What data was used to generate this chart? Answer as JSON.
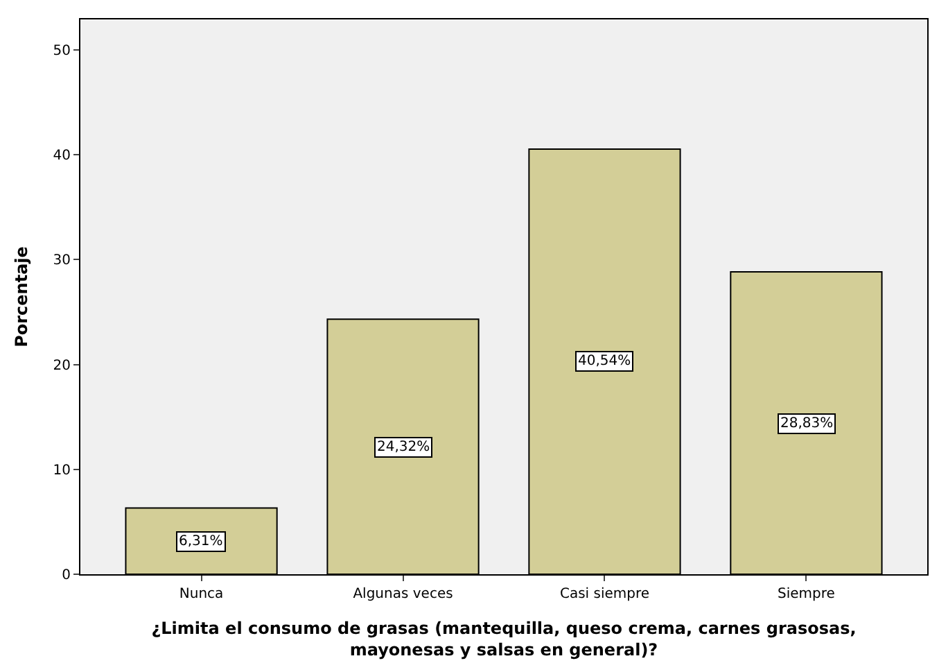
{
  "chart_data": {
    "type": "bar",
    "categories": [
      "Nunca",
      "Algunas veces",
      "Casi siempre",
      "Siempre"
    ],
    "values": [
      6.31,
      24.32,
      40.54,
      28.83
    ],
    "value_labels": [
      "6,31%",
      "24,32%",
      "40,54%",
      "28,83%"
    ],
    "color": "#d3ce97",
    "xlabel": "¿Limita el consumo de grasas (mantequilla, queso crema, carnes grasosas,\nmayonesas y salsas en general)?",
    "ylabel": "Porcentaje",
    "ylim": [
      0,
      52.9
    ],
    "yticks": [
      0,
      10,
      20,
      30,
      40,
      50
    ],
    "grid": false,
    "legend": false
  }
}
